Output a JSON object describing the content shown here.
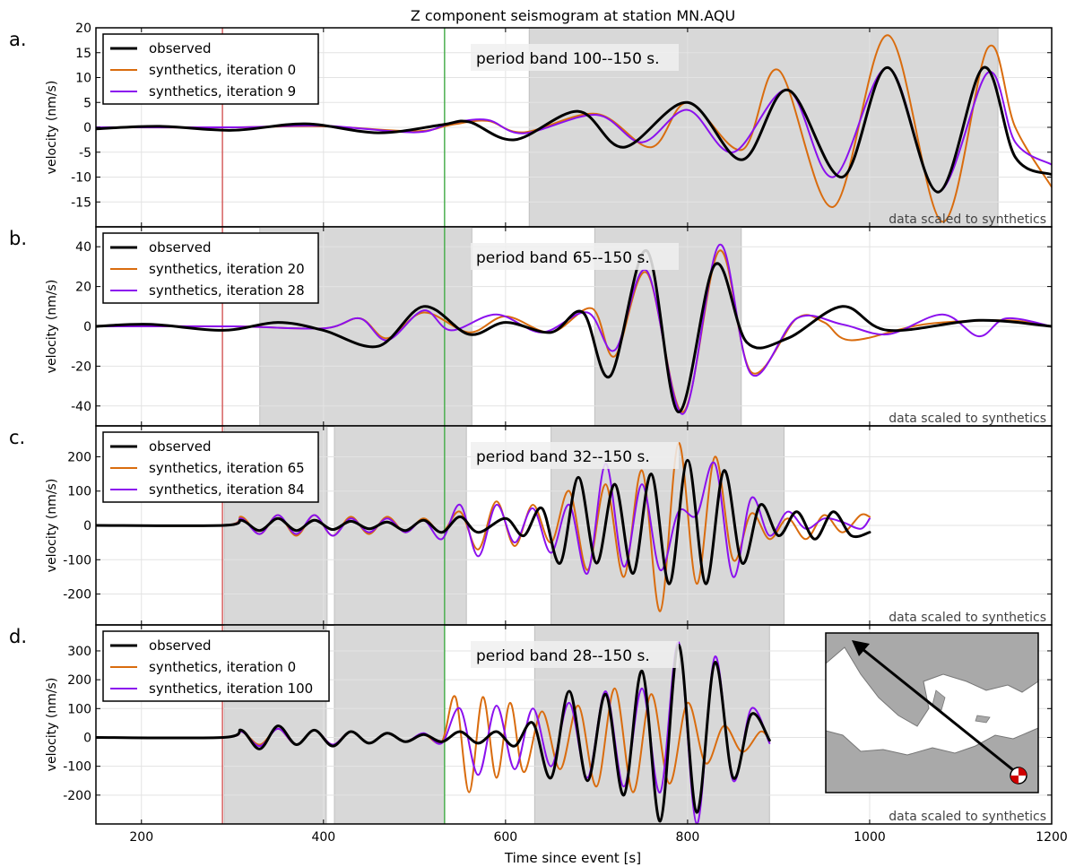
{
  "figure": {
    "title": "Z component seismogram at station MN.AQU",
    "xlabel": "Time since event [s]",
    "x_ticks": [
      200,
      400,
      600,
      800,
      1000,
      1200
    ],
    "xlim": [
      150,
      1200
    ],
    "red_line_time": 289,
    "green_line_time": 533,
    "scaling_note": "data scaled to synthetics",
    "colors": {
      "observed": "#000000",
      "synth_a": "#d96c0e",
      "synth_b": "#8b10ee",
      "window": "#d8d8d8",
      "red_line": "#d66060",
      "green_line": "#4caf50"
    }
  },
  "chart_data": [
    {
      "type": "line",
      "panel_label": "a.",
      "band_label": "period band 100--150 s.",
      "ylabel": "velocity (nm/s)",
      "ylim": [
        -20,
        20
      ],
      "yticks": [
        -15,
        -10,
        -5,
        0,
        5,
        10,
        15,
        20
      ],
      "windows": [
        [
          626,
          1141
        ]
      ],
      "legend": [
        "observed",
        "synthetics, iteration 0",
        "synthetics, iteration 9"
      ],
      "series": [
        {
          "name": "observed",
          "x": [
            150,
            220,
            300,
            380,
            460,
            530,
            560,
            610,
            680,
            730,
            800,
            860,
            910,
            970,
            1020,
            1075,
            1125,
            1160,
            1200
          ],
          "y": [
            -0.3,
            0.2,
            -0.6,
            0.7,
            -1.1,
            0.5,
            1.1,
            -2.5,
            3.2,
            -4.0,
            5.0,
            -6.5,
            7.5,
            -10.0,
            12.0,
            -13.0,
            12.0,
            -6.0,
            -9.5
          ]
        },
        {
          "name": "synthetics, iteration 0",
          "x": [
            150,
            300,
            400,
            500,
            540,
            580,
            620,
            700,
            760,
            800,
            860,
            900,
            960,
            1020,
            1080,
            1130,
            1160,
            1200
          ],
          "y": [
            0,
            0,
            0.2,
            -0.8,
            0.5,
            1.3,
            -1.0,
            2.7,
            -4.0,
            5.0,
            -4.5,
            11.5,
            -16.0,
            18.5,
            -19.0,
            16.0,
            0,
            -12.0
          ]
        },
        {
          "name": "synthetics, iteration 9",
          "x": [
            150,
            300,
            400,
            500,
            540,
            580,
            620,
            700,
            750,
            800,
            850,
            910,
            960,
            1020,
            1075,
            1130,
            1160,
            1200
          ],
          "y": [
            0,
            0,
            0.3,
            -1.0,
            0.8,
            1.5,
            -1.2,
            2.5,
            -3.0,
            3.5,
            -5.0,
            7.5,
            -10.0,
            12.0,
            -13.0,
            11.0,
            -3.0,
            -7.5
          ]
        }
      ]
    },
    {
      "type": "line",
      "panel_label": "b.",
      "band_label": "period band 65--150 s.",
      "ylabel": "velocity (nm/s)",
      "ylim": [
        -50,
        50
      ],
      "yticks": [
        -40,
        -20,
        0,
        20,
        40
      ],
      "windows": [
        [
          330,
          563
        ],
        [
          698,
          859
        ]
      ],
      "legend": [
        "observed",
        "synthetics, iteration 20",
        "synthetics, iteration 28"
      ],
      "series": [
        {
          "name": "observed",
          "x": [
            150,
            210,
            290,
            350,
            400,
            460,
            510,
            560,
            600,
            650,
            685,
            715,
            755,
            790,
            830,
            865,
            910,
            970,
            1020,
            1120,
            1200
          ],
          "y": [
            0,
            1.0,
            -2.0,
            2.0,
            -2.0,
            -10.0,
            10.0,
            -4.0,
            2.0,
            -3.0,
            7.0,
            -25.0,
            38.0,
            -43.0,
            31.0,
            -8.0,
            -6.0,
            10.0,
            -2.0,
            3.0,
            0
          ]
        },
        {
          "name": "synthetics, iteration 20",
          "x": [
            150,
            300,
            400,
            440,
            470,
            510,
            560,
            600,
            650,
            695,
            720,
            755,
            795,
            835,
            870,
            920,
            950,
            980,
            1060,
            1150,
            1200
          ],
          "y": [
            0,
            0,
            -1.0,
            4.0,
            -6.0,
            7.0,
            -3.0,
            5.0,
            -3.0,
            9.0,
            -15.0,
            27.0,
            -43.0,
            38.0,
            -23.0,
            4.0,
            2.0,
            -7.0,
            1.0,
            3.0,
            0
          ]
        },
        {
          "name": "synthetics, iteration 28",
          "x": [
            150,
            300,
            400,
            440,
            470,
            510,
            540,
            590,
            640,
            690,
            720,
            755,
            795,
            835,
            870,
            920,
            970,
            1020,
            1080,
            1120,
            1150,
            1200
          ],
          "y": [
            0,
            0,
            -1.0,
            4.0,
            -7.0,
            8.0,
            -2.0,
            6.0,
            -3.0,
            7.0,
            -12.0,
            28.0,
            -44.0,
            41.0,
            -24.0,
            4.0,
            1.0,
            -4.0,
            6.0,
            -5.0,
            4.0,
            0
          ]
        }
      ]
    },
    {
      "type": "line",
      "panel_label": "c.",
      "band_label": "period band 32--150 s.",
      "ylabel": "velocity (nm/s)",
      "ylim": [
        -290,
        290
      ],
      "yticks": [
        -200,
        -100,
        0,
        100,
        200
      ],
      "windows": [
        [
          291,
          404
        ],
        [
          412,
          557
        ],
        [
          650,
          906
        ]
      ],
      "legend": [
        "observed",
        "synthetics, iteration 65",
        "synthetics, iteration 84"
      ],
      "series": [
        {
          "name": "observed",
          "x": [
            150,
            290,
            310,
            330,
            350,
            370,
            390,
            410,
            430,
            450,
            470,
            490,
            510,
            530,
            550,
            570,
            600,
            620,
            640,
            660,
            680,
            700,
            720,
            740,
            760,
            780,
            800,
            820,
            840,
            860,
            880,
            900,
            920,
            940,
            960,
            980,
            1000
          ],
          "y": [
            0,
            0,
            15,
            -15,
            20,
            -15,
            15,
            -12,
            12,
            -10,
            10,
            -15,
            15,
            -20,
            25,
            -20,
            20,
            -30,
            50,
            -110,
            140,
            -110,
            120,
            -140,
            150,
            -170,
            190,
            -170,
            160,
            -110,
            60,
            -30,
            40,
            -40,
            40,
            -30,
            -20
          ]
        },
        {
          "name": "synthetics, iteration 65",
          "x": [
            150,
            290,
            310,
            330,
            350,
            370,
            390,
            410,
            430,
            450,
            470,
            490,
            510,
            530,
            550,
            570,
            590,
            610,
            630,
            650,
            670,
            690,
            710,
            730,
            750,
            770,
            790,
            810,
            830,
            850,
            870,
            890,
            910,
            930,
            950,
            970,
            990,
            1000
          ],
          "y": [
            0,
            0,
            25,
            -25,
            30,
            -30,
            30,
            -30,
            25,
            -25,
            25,
            -20,
            20,
            -20,
            40,
            -70,
            70,
            -60,
            60,
            -50,
            100,
            -130,
            120,
            -150,
            160,
            -250,
            240,
            -170,
            200,
            -100,
            35,
            -40,
            20,
            -40,
            30,
            -20,
            30,
            25
          ]
        },
        {
          "name": "synthetics, iteration 84",
          "x": [
            150,
            290,
            310,
            330,
            350,
            370,
            390,
            410,
            430,
            450,
            470,
            490,
            510,
            530,
            550,
            570,
            590,
            610,
            630,
            650,
            670,
            690,
            710,
            730,
            750,
            770,
            790,
            810,
            830,
            850,
            870,
            890,
            910,
            930,
            950,
            970,
            990,
            1000
          ],
          "y": [
            0,
            0,
            20,
            -25,
            30,
            -25,
            30,
            -30,
            20,
            -20,
            20,
            -20,
            15,
            -40,
            60,
            -90,
            60,
            -50,
            50,
            -80,
            60,
            -140,
            180,
            -120,
            120,
            -130,
            40,
            30,
            180,
            -150,
            80,
            -30,
            40,
            -10,
            20,
            10,
            -10,
            20
          ]
        }
      ]
    },
    {
      "type": "line",
      "panel_label": "d.",
      "band_label": "period band 28--150 s.",
      "ylabel": "velocity (nm/s)",
      "ylim": [
        -300,
        390
      ],
      "yticks": [
        -200,
        -100,
        0,
        100,
        200,
        300
      ],
      "windows": [
        [
          291,
          403
        ],
        [
          412,
          533
        ],
        [
          632,
          890
        ]
      ],
      "legend": [
        "observed",
        "synthetics, iteration 0",
        "synthetics, iteration 100"
      ],
      "series": [
        {
          "name": "observed",
          "x": [
            150,
            290,
            310,
            330,
            350,
            370,
            390,
            410,
            430,
            450,
            470,
            490,
            510,
            530,
            550,
            570,
            590,
            610,
            630,
            650,
            670,
            690,
            710,
            730,
            750,
            770,
            790,
            810,
            830,
            850,
            870,
            890
          ],
          "y": [
            0,
            0,
            25,
            -40,
            40,
            -25,
            25,
            -30,
            20,
            -20,
            15,
            -15,
            10,
            -15,
            20,
            -20,
            20,
            -30,
            50,
            -140,
            160,
            -150,
            150,
            -200,
            230,
            -290,
            320,
            -260,
            260,
            -140,
            80,
            -10
          ]
        },
        {
          "name": "synthetics, iteration 0",
          "x": [
            150,
            290,
            310,
            330,
            350,
            370,
            390,
            410,
            430,
            450,
            470,
            490,
            510,
            530,
            545,
            560,
            575,
            590,
            605,
            620,
            640,
            660,
            680,
            700,
            720,
            740,
            760,
            780,
            800,
            820,
            840,
            860,
            880,
            890
          ],
          "y": [
            0,
            0,
            20,
            -25,
            30,
            -25,
            25,
            -25,
            20,
            -20,
            15,
            -15,
            10,
            -15,
            140,
            -190,
            140,
            -140,
            120,
            -120,
            90,
            -110,
            110,
            -170,
            170,
            -190,
            150,
            -160,
            120,
            -90,
            40,
            -50,
            20,
            -10
          ]
        },
        {
          "name": "synthetics, iteration 100",
          "x": [
            150,
            290,
            310,
            330,
            350,
            370,
            390,
            410,
            430,
            450,
            470,
            490,
            510,
            530,
            550,
            570,
            590,
            610,
            630,
            650,
            670,
            690,
            710,
            730,
            750,
            770,
            790,
            810,
            830,
            850,
            870,
            890
          ],
          "y": [
            0,
            0,
            20,
            -30,
            30,
            -25,
            25,
            -25,
            20,
            -20,
            15,
            -15,
            15,
            -20,
            100,
            -130,
            110,
            -110,
            100,
            -100,
            120,
            -140,
            160,
            -170,
            170,
            -190,
            330,
            -300,
            280,
            -150,
            100,
            -20
          ]
        }
      ]
    }
  ],
  "inset_map": {
    "type": "map",
    "content": "Mediterranean region with arrow from event (beachball) towards station"
  }
}
